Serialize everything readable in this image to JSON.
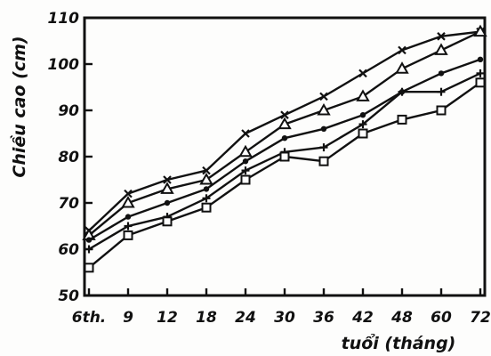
{
  "chart_data": {
    "type": "line",
    "title": "",
    "xlabel": "tuổi (tháng)",
    "ylabel": "Chiều cao (cm)",
    "categories": [
      "6th.",
      "9",
      "12",
      "18",
      "24",
      "30",
      "36",
      "42",
      "48",
      "60",
      "72"
    ],
    "yticks": [
      "50",
      "60",
      "70",
      "80",
      "90",
      "100",
      "110"
    ],
    "ylim": [
      50,
      110
    ],
    "grid": false,
    "legend": "none",
    "series": [
      {
        "marker": "x",
        "values": [
          64,
          72,
          75,
          77,
          85,
          89,
          93,
          98,
          103,
          106,
          107
        ]
      },
      {
        "marker": "triangle",
        "values": [
          63,
          70,
          73,
          75,
          81,
          87,
          90,
          93,
          99,
          103,
          107
        ]
      },
      {
        "marker": "dot",
        "values": [
          62,
          67,
          70,
          73,
          79,
          84,
          86,
          89,
          94,
          98,
          101
        ]
      },
      {
        "marker": "cross",
        "values": [
          60,
          65,
          67,
          71,
          77,
          81,
          82,
          87,
          94,
          94,
          98
        ]
      },
      {
        "marker": "square",
        "values": [
          56,
          63,
          66,
          69,
          75,
          80,
          79,
          85,
          88,
          90,
          96
        ]
      }
    ],
    "colors": {
      "ink": "#111111"
    }
  }
}
